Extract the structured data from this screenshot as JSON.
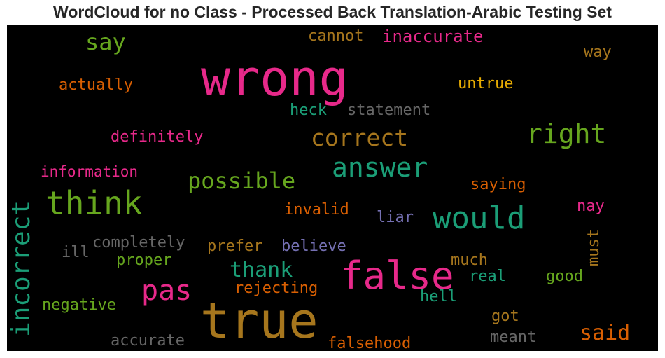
{
  "chart_data": {
    "type": "wordcloud",
    "title": "WordCloud for no Class - Processed Back Translation-Arabic Testing Set",
    "background": "#000000",
    "palette": [
      "#e7298a",
      "#a6761d",
      "#1b9e77",
      "#66a61e",
      "#d95f02",
      "#7570b3",
      "#666666",
      "#e6ab02"
    ],
    "words": [
      {
        "text": "wrong",
        "color": "#e7298a"
      },
      {
        "text": "true",
        "color": "#a6761d"
      },
      {
        "text": "false",
        "color": "#e7298a"
      },
      {
        "text": "would",
        "color": "#1b9e77"
      },
      {
        "text": "think",
        "color": "#66a61e"
      },
      {
        "text": "answer",
        "color": "#1b9e77"
      },
      {
        "text": "right",
        "color": "#66a61e"
      },
      {
        "text": "pas",
        "color": "#e7298a"
      },
      {
        "text": "incorrect",
        "color": "#1b9e77"
      },
      {
        "text": "correct",
        "color": "#a6761d"
      },
      {
        "text": "possible",
        "color": "#66a61e"
      },
      {
        "text": "said",
        "color": "#d95f02"
      },
      {
        "text": "thank",
        "color": "#1b9e77"
      },
      {
        "text": "say",
        "color": "#66a61e"
      },
      {
        "text": "inaccurate",
        "color": "#e7298a"
      },
      {
        "text": "cannot",
        "color": "#a6761d"
      },
      {
        "text": "way",
        "color": "#a6761d"
      },
      {
        "text": "actually",
        "color": "#d95f02"
      },
      {
        "text": "untrue",
        "color": "#e6ab02"
      },
      {
        "text": "heck",
        "color": "#1b9e77"
      },
      {
        "text": "statement",
        "color": "#666666"
      },
      {
        "text": "definitely",
        "color": "#e7298a"
      },
      {
        "text": "information",
        "color": "#e7298a"
      },
      {
        "text": "saying",
        "color": "#d95f02"
      },
      {
        "text": "invalid",
        "color": "#d95f02"
      },
      {
        "text": "liar",
        "color": "#7570b3"
      },
      {
        "text": "nay",
        "color": "#e7298a"
      },
      {
        "text": "must",
        "color": "#a6761d"
      },
      {
        "text": "completely",
        "color": "#666666"
      },
      {
        "text": "ill",
        "color": "#666666"
      },
      {
        "text": "prefer",
        "color": "#a6761d"
      },
      {
        "text": "believe",
        "color": "#7570b3"
      },
      {
        "text": "proper",
        "color": "#66a61e"
      },
      {
        "text": "much",
        "color": "#a6761d"
      },
      {
        "text": "real",
        "color": "#1b9e77"
      },
      {
        "text": "good",
        "color": "#66a61e"
      },
      {
        "text": "rejecting",
        "color": "#d95f02"
      },
      {
        "text": "negative",
        "color": "#66a61e"
      },
      {
        "text": "hell",
        "color": "#1b9e77"
      },
      {
        "text": "got",
        "color": "#a6761d"
      },
      {
        "text": "accurate",
        "color": "#666666"
      },
      {
        "text": "falsehood",
        "color": "#d95f02"
      },
      {
        "text": "meant",
        "color": "#666666"
      }
    ]
  }
}
